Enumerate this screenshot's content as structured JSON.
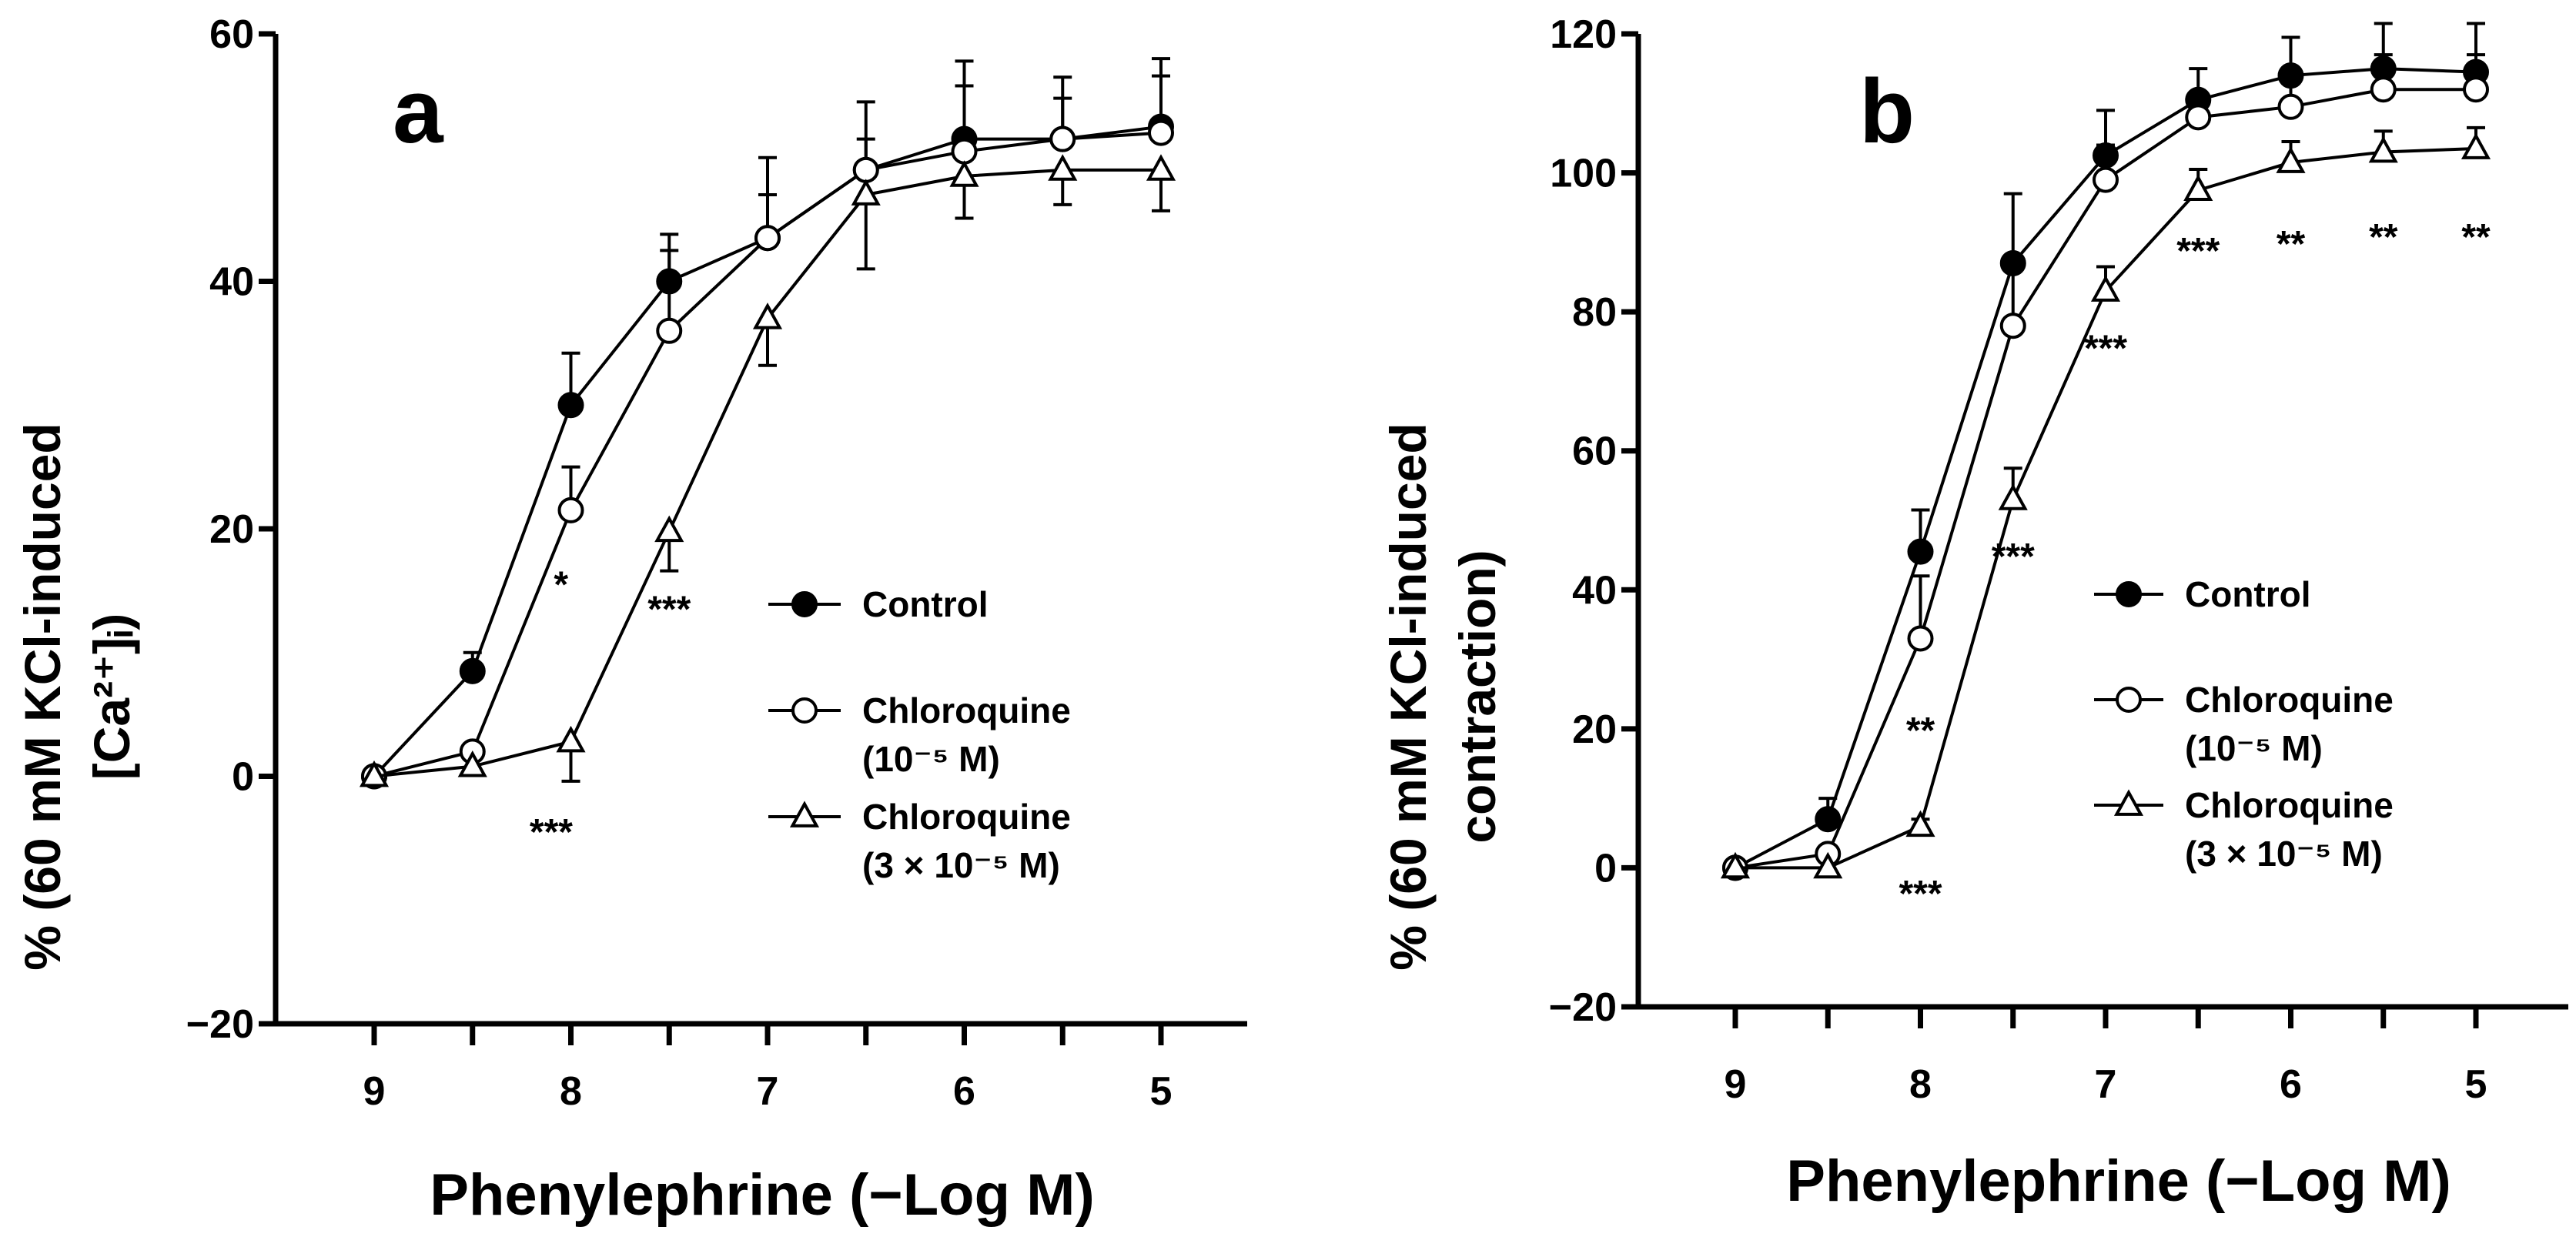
{
  "chart_data": [
    {
      "id": "a",
      "type": "line",
      "panel_label": "a",
      "ylabel_line1": "% (60 mM KCl-induced",
      "ylabel_line2": "[Ca²⁺]ᵢ)",
      "xlabel": "Phenylephrine (−Log M)",
      "x_ticks": [
        9,
        8,
        7,
        6,
        5
      ],
      "x_tick_labels": [
        "9",
        "8",
        "7",
        "6",
        "5"
      ],
      "ylim": [
        -20,
        60
      ],
      "y_ticks": [
        -20,
        0,
        20,
        40,
        60
      ],
      "y_tick_labels": [
        "−20",
        "0",
        "20",
        "40",
        "60"
      ],
      "x": [
        9,
        8.5,
        8,
        7.5,
        7,
        6.5,
        6,
        5.5,
        5
      ],
      "series": [
        {
          "name": "Control",
          "marker": "filled-circle",
          "values": [
            0,
            8.5,
            30,
            40,
            43.5,
            49,
            51.5,
            51.5,
            52.5
          ],
          "errors": [
            0,
            1.5,
            4.2,
            3.8,
            6.5,
            5.5,
            6.3,
            3.3,
            4.1
          ]
        },
        {
          "name": "Chloroquine (10⁻⁵ M)",
          "marker": "open-circle",
          "values": [
            0,
            2,
            21.5,
            36,
            43.5,
            49,
            50.5,
            51.5,
            52
          ],
          "errors": [
            0,
            0.5,
            3.5,
            6.5,
            3.5,
            2.5,
            5.3,
            5,
            6
          ]
        },
        {
          "name": "Chloroquine (3 × 10⁻⁵ M)",
          "marker": "open-triangle",
          "values": [
            0,
            0.8,
            2.8,
            19.8,
            37,
            47,
            48.5,
            49,
            49
          ],
          "errors": [
            0,
            0.5,
            3.2,
            3.2,
            3.8,
            6,
            3.4,
            2.8,
            3.3
          ]
        }
      ],
      "annotations": [
        {
          "text": "*",
          "x": 8.05,
          "y": 14.5
        },
        {
          "text": "***",
          "x": 7.5,
          "y": 12.5
        },
        {
          "text": "***",
          "x": 8.1,
          "y": -5.5
        }
      ],
      "legend": [
        {
          "marker": "filled-circle",
          "line1": "Control",
          "line2": ""
        },
        {
          "marker": "open-circle",
          "line1": "Chloroquine",
          "line2": "(10⁻⁵ M)"
        },
        {
          "marker": "open-triangle",
          "line1": "Chloroquine",
          "line2": "(3 × 10⁻⁵ M)"
        }
      ],
      "legend_position": "right-center"
    },
    {
      "id": "b",
      "type": "line",
      "panel_label": "b",
      "ylabel_line1": "% (60 mM KCl-induced",
      "ylabel_line2": "contraction)",
      "xlabel": "Phenylephrine (−Log M)",
      "x_ticks": [
        9,
        8,
        7,
        6,
        5
      ],
      "x_tick_labels": [
        "9",
        "8",
        "7",
        "6",
        "5"
      ],
      "ylim": [
        -20,
        120
      ],
      "y_ticks": [
        -20,
        0,
        20,
        40,
        60,
        80,
        100,
        120
      ],
      "y_tick_labels": [
        "−20",
        "0",
        "20",
        "40",
        "60",
        "80",
        "100",
        "120"
      ],
      "x": [
        9,
        8.5,
        8,
        7.5,
        7,
        6.5,
        6,
        5.5,
        5
      ],
      "series": [
        {
          "name": "Control",
          "marker": "filled-circle",
          "values": [
            0,
            7,
            45.5,
            87,
            102.5,
            110.5,
            114,
            115,
            114.5
          ],
          "errors": [
            0,
            3,
            6,
            10,
            6.5,
            4.5,
            5.5,
            6.5,
            7
          ]
        },
        {
          "name": "Chloroquine (10⁻⁵ M)",
          "marker": "open-circle",
          "values": [
            0,
            2,
            33,
            78,
            99,
            108,
            109.5,
            112,
            112
          ],
          "errors": [
            0,
            1,
            9,
            9,
            5,
            3.5,
            4,
            5,
            5
          ]
        },
        {
          "name": "Chloroquine (3 × 10⁻⁵ M)",
          "marker": "open-triangle",
          "values": [
            0,
            0,
            6,
            53,
            83,
            97.5,
            101.5,
            103,
            103.5
          ],
          "errors": [
            0,
            0,
            1,
            4.5,
            3.5,
            3,
            3,
            3,
            3
          ]
        }
      ],
      "annotations": [
        {
          "text": "**",
          "x": 8.0,
          "y": 18
        },
        {
          "text": "***",
          "x": 7.5,
          "y": 43
        },
        {
          "text": "***",
          "x": 7.0,
          "y": 73
        },
        {
          "text": "***",
          "x": 6.5,
          "y": 87
        },
        {
          "text": "**",
          "x": 6.0,
          "y": 88
        },
        {
          "text": "**",
          "x": 5.5,
          "y": 89
        },
        {
          "text": "**",
          "x": 5.0,
          "y": 89
        },
        {
          "text": "***",
          "x": 8.0,
          "y": -5.5
        }
      ],
      "legend": [
        {
          "marker": "filled-circle",
          "line1": "Control",
          "line2": ""
        },
        {
          "marker": "open-circle",
          "line1": "Chloroquine",
          "line2": "(10⁻⁵ M)"
        },
        {
          "marker": "open-triangle",
          "line1": "Chloroquine",
          "line2": "(3 × 10⁻⁵ M)"
        }
      ],
      "legend_position": "right-center"
    }
  ]
}
